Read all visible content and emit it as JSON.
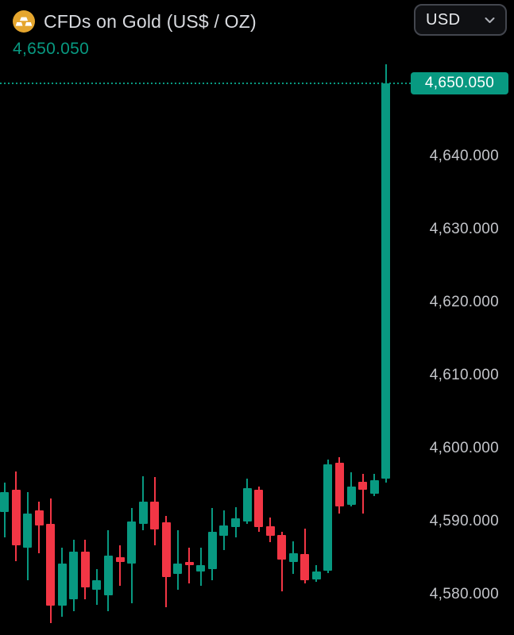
{
  "header": {
    "title": "CFDs on Gold (US$ / OZ)",
    "last_price": "4,650.050"
  },
  "currency_selector": {
    "value": "USD"
  },
  "icons": {
    "symbol_icon": "gold-bars-icon",
    "currency_chevron": "chevron-down-icon"
  },
  "colors": {
    "background": "#000000",
    "up": "#089981",
    "down": "#F23645",
    "title_text": "#D8DADF",
    "axis_text": "#C3C5CA",
    "price_label_text": "#FFFFFF",
    "pill_border": "#43464E",
    "pill_text": "#E8EAED",
    "gold_icon": "#E5A62E"
  },
  "chart_data": {
    "type": "candlestick",
    "title": "CFDs on Gold (US$ / OZ)",
    "currency": "USD",
    "current_price": 4650.05,
    "current_price_label": "4,650.050",
    "ylim": [
      4574.46,
      4661.41
    ],
    "grid": false,
    "y_ticks": [
      {
        "value": 4640,
        "label": "4,640.000"
      },
      {
        "value": 4630,
        "label": "4,630.000"
      },
      {
        "value": 4620,
        "label": "4,620.000"
      },
      {
        "value": 4610,
        "label": "4,610.000"
      },
      {
        "value": 4600,
        "label": "4,600.000"
      },
      {
        "value": 4590,
        "label": "4,590.000"
      },
      {
        "value": 4580,
        "label": "4,580.000"
      }
    ],
    "ohlc": [
      {
        "o": 4591.3,
        "h": 4595.3,
        "l": 4587.8,
        "c": 4594.0
      },
      {
        "o": 4594.3,
        "h": 4596.9,
        "l": 4584.6,
        "c": 4586.7
      },
      {
        "o": 4586.4,
        "h": 4594.0,
        "l": 4582.0,
        "c": 4591.1
      },
      {
        "o": 4591.5,
        "h": 4592.7,
        "l": 4585.6,
        "c": 4589.5
      },
      {
        "o": 4589.7,
        "h": 4593.2,
        "l": 4576.1,
        "c": 4578.5
      },
      {
        "o": 4578.5,
        "h": 4586.4,
        "l": 4577.0,
        "c": 4584.2
      },
      {
        "o": 4579.3,
        "h": 4587.5,
        "l": 4577.7,
        "c": 4585.9
      },
      {
        "o": 4585.9,
        "h": 4587.5,
        "l": 4579.3,
        "c": 4581.0
      },
      {
        "o": 4580.7,
        "h": 4583.5,
        "l": 4578.6,
        "c": 4582.0
      },
      {
        "o": 4579.9,
        "h": 4588.8,
        "l": 4577.7,
        "c": 4585.3
      },
      {
        "o": 4585.1,
        "h": 4586.7,
        "l": 4581.2,
        "c": 4584.5
      },
      {
        "o": 4584.2,
        "h": 4591.8,
        "l": 4578.8,
        "c": 4590.0
      },
      {
        "o": 4589.7,
        "h": 4596.2,
        "l": 4588.8,
        "c": 4592.7
      },
      {
        "o": 4592.7,
        "h": 4596.1,
        "l": 4586.7,
        "c": 4588.9
      },
      {
        "o": 4589.9,
        "h": 4590.8,
        "l": 4578.3,
        "c": 4582.4
      },
      {
        "o": 4582.8,
        "h": 4588.8,
        "l": 4580.7,
        "c": 4584.2
      },
      {
        "o": 4584.5,
        "h": 4586.4,
        "l": 4581.5,
        "c": 4584.0
      },
      {
        "o": 4583.2,
        "h": 4586.4,
        "l": 4581.2,
        "c": 4584.0
      },
      {
        "o": 4583.5,
        "h": 4591.8,
        "l": 4582.0,
        "c": 4588.6
      },
      {
        "o": 4588.0,
        "h": 4591.5,
        "l": 4586.1,
        "c": 4589.5
      },
      {
        "o": 4589.2,
        "h": 4592.0,
        "l": 4587.8,
        "c": 4590.4
      },
      {
        "o": 4590.0,
        "h": 4595.9,
        "l": 4589.7,
        "c": 4594.6
      },
      {
        "o": 4594.3,
        "h": 4594.8,
        "l": 4588.6,
        "c": 4589.2
      },
      {
        "o": 4589.3,
        "h": 4590.5,
        "l": 4587.2,
        "c": 4588.0
      },
      {
        "o": 4588.2,
        "h": 4588.6,
        "l": 4580.4,
        "c": 4584.8
      },
      {
        "o": 4584.5,
        "h": 4587.3,
        "l": 4582.8,
        "c": 4585.7
      },
      {
        "o": 4585.5,
        "h": 4589.0,
        "l": 4581.5,
        "c": 4582.0
      },
      {
        "o": 4582.1,
        "h": 4584.0,
        "l": 4581.7,
        "c": 4583.2
      },
      {
        "o": 4583.3,
        "h": 4598.5,
        "l": 4582.9,
        "c": 4597.8
      },
      {
        "o": 4598.0,
        "h": 4598.8,
        "l": 4591.1,
        "c": 4592.1
      },
      {
        "o": 4592.3,
        "h": 4596.7,
        "l": 4592.1,
        "c": 4594.8
      },
      {
        "o": 4595.4,
        "h": 4596.5,
        "l": 4591.1,
        "c": 4594.3
      },
      {
        "o": 4593.8,
        "h": 4596.5,
        "l": 4593.5,
        "c": 4595.6
      },
      {
        "o": 4595.9,
        "h": 4652.6,
        "l": 4595.3,
        "c": 4650.05
      }
    ]
  }
}
